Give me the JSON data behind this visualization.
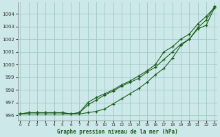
{
  "bg_color": "#cce8e8",
  "grid_color": "#a0c8c8",
  "line_color": "#1a5c1a",
  "xlabel": "Graphe pression niveau de la mer (hPa)",
  "ylim": [
    995.6,
    1004.9
  ],
  "xlim": [
    -0.3,
    23.3
  ],
  "yticks": [
    996,
    997,
    998,
    999,
    1000,
    1001,
    1002,
    1003,
    1004
  ],
  "xticks": [
    0,
    1,
    2,
    3,
    4,
    5,
    6,
    7,
    8,
    9,
    10,
    11,
    12,
    13,
    14,
    15,
    16,
    17,
    18,
    19,
    20,
    21,
    22,
    23
  ],
  "line1_y": [
    996.1,
    996.2,
    996.2,
    996.2,
    996.2,
    996.2,
    996.1,
    996.2,
    996.8,
    997.2,
    997.6,
    997.9,
    998.3,
    998.6,
    998.9,
    999.4,
    999.8,
    1000.4,
    1001.0,
    1001.6,
    1002.0,
    1002.8,
    1003.1,
    1004.5
  ],
  "line2_y": [
    996.1,
    996.2,
    996.2,
    996.2,
    996.2,
    996.2,
    996.1,
    996.2,
    997.0,
    997.4,
    997.7,
    998.0,
    998.4,
    998.7,
    999.1,
    999.5,
    1000.0,
    1001.0,
    1001.4,
    1002.0,
    1002.4,
    1003.2,
    1003.8,
    1004.5
  ],
  "line3_y": [
    996.1,
    996.1,
    996.1,
    996.1,
    996.1,
    996.1,
    996.1,
    996.1,
    996.2,
    996.3,
    996.5,
    996.9,
    997.3,
    997.7,
    998.1,
    998.6,
    999.2,
    999.7,
    1000.5,
    1001.5,
    1002.0,
    1002.9,
    1003.5,
    1004.6
  ]
}
